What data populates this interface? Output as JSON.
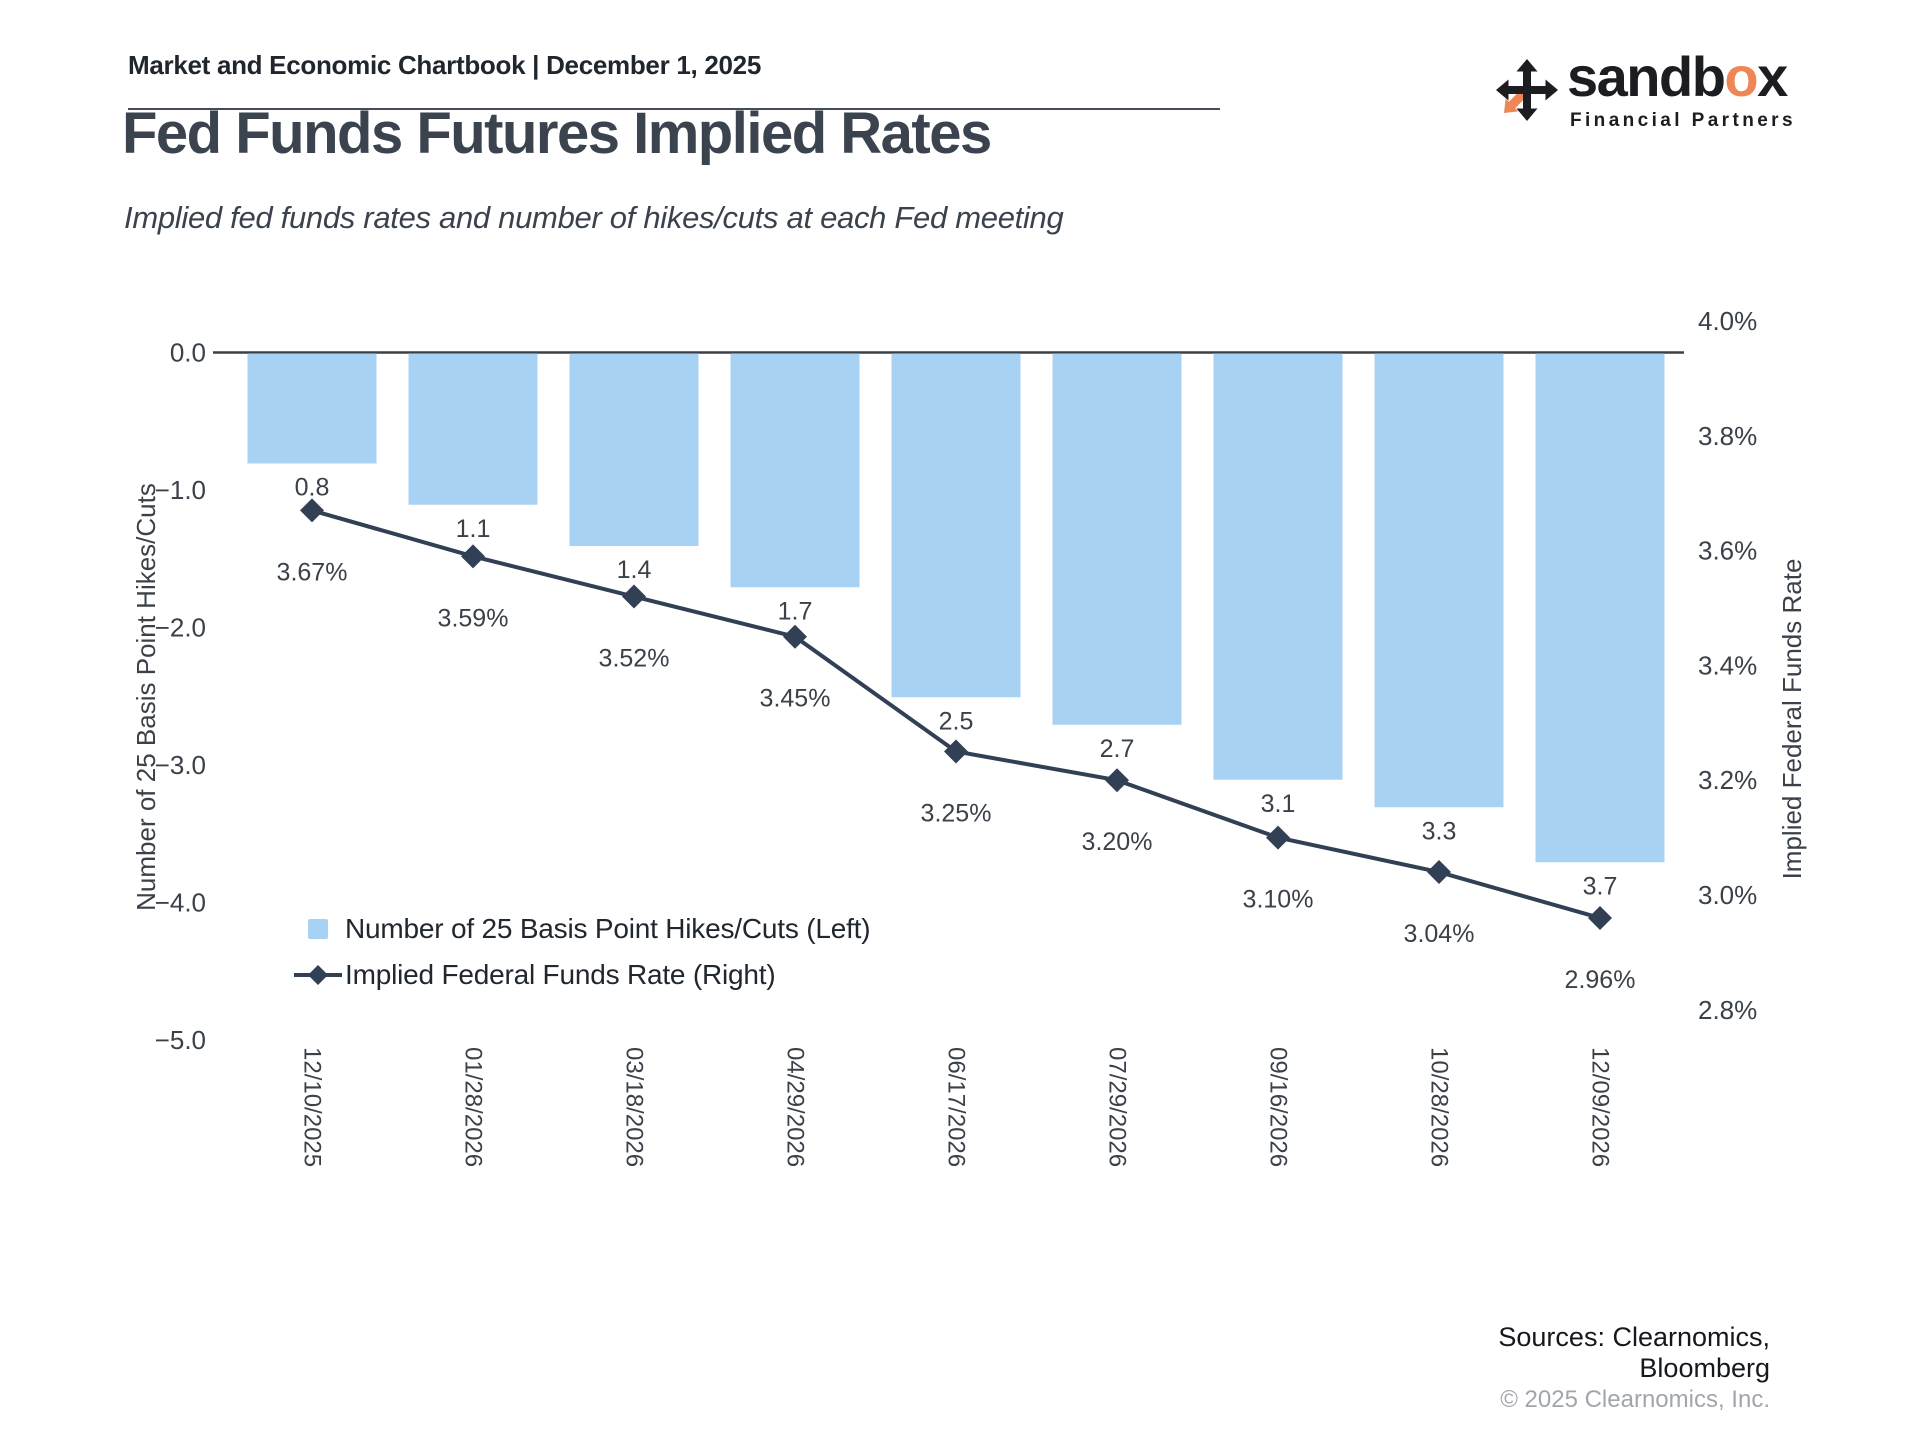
{
  "header": {
    "chartbook_label": "Market and Economic Chartbook | December 1, 2025"
  },
  "logo": {
    "brand_prefix": "sandb",
    "brand_o": "o",
    "brand_suffix": "x",
    "tagline": "Financial Partners",
    "orange": "#ee8655",
    "black": "#1b1d21"
  },
  "title": "Fed Funds Futures Implied Rates",
  "subtitle": "Implied fed funds rates and number of hikes/cuts at each Fed meeting",
  "legend": {
    "items": [
      {
        "label": "Number of 25 Basis Point Hikes/Cuts (Left)",
        "marker": "square",
        "color": "#a8d2f3"
      },
      {
        "label": "Implied Federal Funds Rate (Right)",
        "marker": "line-diamond",
        "color": "#324055"
      }
    ]
  },
  "sources": {
    "line1": "Sources: Clearnomics,",
    "line2": "Bloomberg",
    "copyright": "© 2025 Clearnomics, Inc."
  },
  "chart_data": {
    "type": "combo-bar-line",
    "categories": [
      "12/10/2025",
      "01/28/2026",
      "03/18/2026",
      "04/29/2026",
      "06/17/2026",
      "07/29/2026",
      "09/16/2026",
      "10/28/2026",
      "12/09/2026"
    ],
    "series": [
      {
        "name": "Number of 25 Basis Point Hikes/Cuts (Left)",
        "type": "bar",
        "axis": "left",
        "color": "#a8d2f3",
        "values": [
          -0.8,
          -1.1,
          -1.4,
          -1.7,
          -2.5,
          -2.7,
          -3.1,
          -3.3,
          -3.7
        ],
        "data_labels": [
          "0.8",
          "1.1",
          "1.4",
          "1.7",
          "2.5",
          "2.7",
          "3.1",
          "3.3",
          "3.7"
        ]
      },
      {
        "name": "Implied Federal Funds Rate (Right)",
        "type": "line",
        "axis": "right",
        "color": "#324055",
        "marker": "diamond",
        "values": [
          3.67,
          3.59,
          3.52,
          3.45,
          3.25,
          3.2,
          3.1,
          3.04,
          2.96
        ],
        "data_labels": [
          "3.67%",
          "3.59%",
          "3.52%",
          "3.45%",
          "3.25%",
          "3.20%",
          "3.10%",
          "3.04%",
          "2.96%"
        ]
      }
    ],
    "left_axis": {
      "title": "Number of 25 Basis Point Hikes/Cuts",
      "tick_labels": [
        "0.0",
        "−1.0",
        "−2.0",
        "−3.0",
        "−4.0",
        "−5.0"
      ],
      "tick_values": [
        0,
        -1,
        -2,
        -3,
        -4,
        -5
      ],
      "range": [
        -5.2,
        0.1
      ]
    },
    "right_axis": {
      "title": "Implied Federal Funds Rate",
      "tick_labels": [
        "4.0%",
        "3.8%",
        "3.6%",
        "3.4%",
        "3.2%",
        "3.0%",
        "2.8%"
      ],
      "tick_values": [
        4.0,
        3.8,
        3.6,
        3.4,
        3.2,
        3.0,
        2.8
      ],
      "range": [
        2.74,
        4.06
      ]
    },
    "grid": false,
    "legend_position": "inside-lower-left",
    "text_color": "#3a4149",
    "axis_line_color": "#3a4046"
  }
}
